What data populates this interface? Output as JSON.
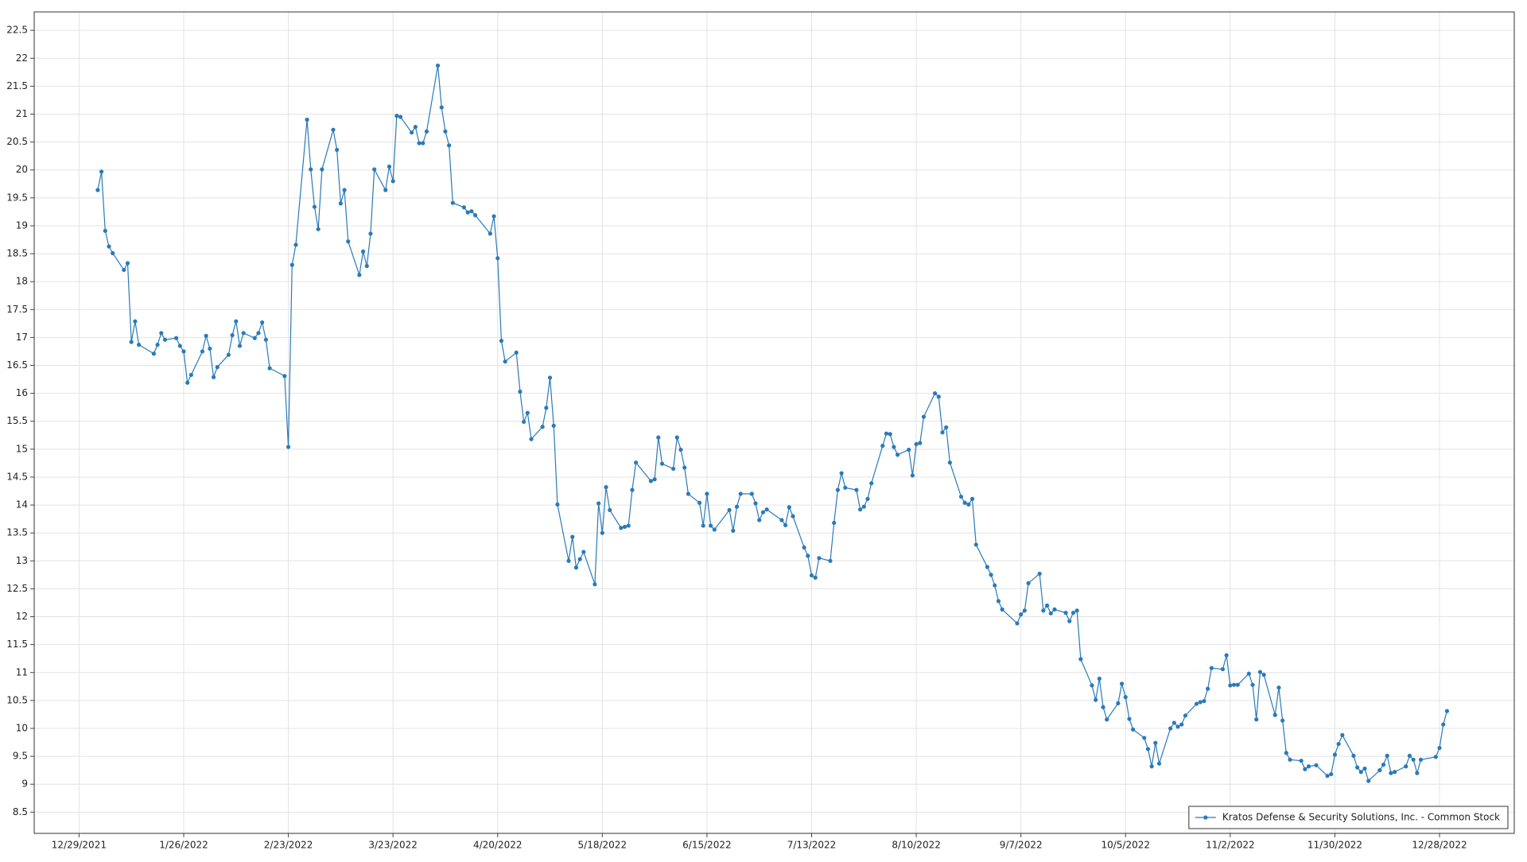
{
  "chart_data": {
    "type": "line",
    "x": [
      "1/3/2022",
      "1/4/2022",
      "1/5/2022",
      "1/6/2022",
      "1/7/2022",
      "1/10/2022",
      "1/11/2022",
      "1/12/2022",
      "1/13/2022",
      "1/14/2022",
      "1/18/2022",
      "1/19/2022",
      "1/20/2022",
      "1/21/2022",
      "1/24/2022",
      "1/25/2022",
      "1/26/2022",
      "1/27/2022",
      "1/28/2022",
      "1/31/2022",
      "2/1/2022",
      "2/2/2022",
      "2/3/2022",
      "2/4/2022",
      "2/7/2022",
      "2/8/2022",
      "2/9/2022",
      "2/10/2022",
      "2/11/2022",
      "2/14/2022",
      "2/15/2022",
      "2/16/2022",
      "2/17/2022",
      "2/18/2022",
      "2/22/2022",
      "2/23/2022",
      "2/24/2022",
      "2/25/2022",
      "2/28/2022",
      "3/1/2022",
      "3/2/2022",
      "3/3/2022",
      "3/4/2022",
      "3/7/2022",
      "3/8/2022",
      "3/9/2022",
      "3/10/2022",
      "3/11/2022",
      "3/14/2022",
      "3/15/2022",
      "3/16/2022",
      "3/17/2022",
      "3/18/2022",
      "3/21/2022",
      "3/22/2022",
      "3/23/2022",
      "3/24/2022",
      "3/25/2022",
      "3/28/2022",
      "3/29/2022",
      "3/30/2022",
      "3/31/2022",
      "4/1/2022",
      "4/4/2022",
      "4/5/2022",
      "4/6/2022",
      "4/7/2022",
      "4/8/2022",
      "4/11/2022",
      "4/12/2022",
      "4/13/2022",
      "4/14/2022",
      "4/18/2022",
      "4/19/2022",
      "4/20/2022",
      "4/21/2022",
      "4/22/2022",
      "4/25/2022",
      "4/26/2022",
      "4/27/2022",
      "4/28/2022",
      "4/29/2022",
      "5/2/2022",
      "5/3/2022",
      "5/4/2022",
      "5/5/2022",
      "5/6/2022",
      "5/9/2022",
      "5/10/2022",
      "5/11/2022",
      "5/12/2022",
      "5/13/2022",
      "5/16/2022",
      "5/17/2022",
      "5/18/2022",
      "5/19/2022",
      "5/20/2022",
      "5/23/2022",
      "5/24/2022",
      "5/25/2022",
      "5/26/2022",
      "5/27/2022",
      "5/31/2022",
      "6/1/2022",
      "6/2/2022",
      "6/3/2022",
      "6/6/2022",
      "6/7/2022",
      "6/8/2022",
      "6/9/2022",
      "6/10/2022",
      "6/13/2022",
      "6/14/2022",
      "6/15/2022",
      "6/16/2022",
      "6/17/2022",
      "6/21/2022",
      "6/22/2022",
      "6/23/2022",
      "6/24/2022",
      "6/27/2022",
      "6/28/2022",
      "6/29/2022",
      "6/30/2022",
      "7/1/2022",
      "7/5/2022",
      "7/6/2022",
      "7/7/2022",
      "7/8/2022",
      "7/11/2022",
      "7/12/2022",
      "7/13/2022",
      "7/14/2022",
      "7/15/2022",
      "7/18/2022",
      "7/19/2022",
      "7/20/2022",
      "7/21/2022",
      "7/22/2022",
      "7/25/2022",
      "7/26/2022",
      "7/27/2022",
      "7/28/2022",
      "7/29/2022",
      "8/1/2022",
      "8/2/2022",
      "8/3/2022",
      "8/4/2022",
      "8/5/2022",
      "8/8/2022",
      "8/9/2022",
      "8/10/2022",
      "8/11/2022",
      "8/12/2022",
      "8/15/2022",
      "8/16/2022",
      "8/17/2022",
      "8/18/2022",
      "8/19/2022",
      "8/22/2022",
      "8/23/2022",
      "8/24/2022",
      "8/25/2022",
      "8/26/2022",
      "8/29/2022",
      "8/30/2022",
      "8/31/2022",
      "9/1/2022",
      "9/2/2022",
      "9/6/2022",
      "9/7/2022",
      "9/8/2022",
      "9/9/2022",
      "9/12/2022",
      "9/13/2022",
      "9/14/2022",
      "9/15/2022",
      "9/16/2022",
      "9/19/2022",
      "9/20/2022",
      "9/21/2022",
      "9/22/2022",
      "9/23/2022",
      "9/26/2022",
      "9/27/2022",
      "9/28/2022",
      "9/29/2022",
      "9/30/2022",
      "10/3/2022",
      "10/4/2022",
      "10/5/2022",
      "10/6/2022",
      "10/7/2022",
      "10/10/2022",
      "10/11/2022",
      "10/12/2022",
      "10/13/2022",
      "10/14/2022",
      "10/17/2022",
      "10/18/2022",
      "10/19/2022",
      "10/20/2022",
      "10/21/2022",
      "10/24/2022",
      "10/25/2022",
      "10/26/2022",
      "10/27/2022",
      "10/28/2022",
      "10/31/2022",
      "11/1/2022",
      "11/2/2022",
      "11/3/2022",
      "11/4/2022",
      "11/7/2022",
      "11/8/2022",
      "11/9/2022",
      "11/10/2022",
      "11/11/2022",
      "11/14/2022",
      "11/15/2022",
      "11/16/2022",
      "11/17/2022",
      "11/18/2022",
      "11/21/2022",
      "11/22/2022",
      "11/23/2022",
      "11/25/2022",
      "11/28/2022",
      "11/29/2022",
      "11/30/2022",
      "12/1/2022",
      "12/2/2022",
      "12/5/2022",
      "12/6/2022",
      "12/7/2022",
      "12/8/2022",
      "12/9/2022",
      "12/12/2022",
      "12/13/2022",
      "12/14/2022",
      "12/15/2022",
      "12/16/2022",
      "12/19/2022",
      "12/20/2022",
      "12/21/2022",
      "12/22/2022",
      "12/23/2022",
      "12/27/2022",
      "12/28/2022",
      "12/29/2022",
      "12/30/2022"
    ],
    "series": [
      {
        "name": "Kratos Defense & Security Solutions, Inc. - Common Stock",
        "color": "#2a7ab9",
        "values": [
          19.64,
          19.97,
          18.91,
          18.63,
          18.51,
          18.21,
          18.33,
          16.92,
          17.29,
          16.87,
          16.71,
          16.87,
          17.08,
          16.96,
          16.99,
          16.85,
          16.75,
          16.19,
          16.33,
          16.75,
          17.03,
          16.8,
          16.29,
          16.47,
          16.69,
          17.04,
          17.29,
          16.85,
          17.08,
          16.99,
          17.08,
          17.27,
          16.96,
          16.45,
          16.31,
          15.04,
          18.3,
          18.66,
          20.9,
          20.01,
          19.34,
          18.94,
          20.01,
          20.72,
          20.36,
          19.4,
          19.64,
          18.72,
          18.12,
          18.54,
          18.28,
          18.86,
          20.01,
          19.64,
          20.06,
          19.8,
          20.97,
          20.95,
          20.67,
          20.77,
          20.48,
          20.48,
          20.69,
          21.87,
          21.12,
          20.69,
          20.44,
          19.41,
          19.33,
          19.24,
          19.26,
          19.19,
          18.86,
          19.17,
          18.42,
          16.94,
          16.57,
          16.73,
          16.03,
          15.49,
          15.65,
          15.18,
          15.4,
          15.74,
          16.28,
          15.42,
          14.01,
          13.0,
          13.43,
          12.88,
          13.03,
          13.16,
          12.58,
          14.03,
          13.5,
          14.32,
          13.91,
          13.59,
          13.61,
          13.63,
          14.27,
          14.76,
          14.43,
          14.46,
          15.21,
          14.74,
          14.65,
          15.21,
          14.99,
          14.67,
          14.2,
          14.04,
          13.63,
          14.2,
          13.63,
          13.56,
          13.91,
          13.54,
          13.97,
          14.2,
          14.2,
          14.03,
          13.73,
          13.87,
          13.92,
          13.73,
          13.64,
          13.96,
          13.8,
          13.24,
          13.09,
          12.74,
          12.7,
          13.05,
          13.0,
          13.68,
          14.27,
          14.57,
          14.31,
          14.27,
          13.92,
          13.97,
          14.11,
          14.39,
          15.06,
          15.28,
          15.27,
          15.04,
          14.9,
          14.99,
          14.53,
          15.09,
          15.11,
          15.58,
          16.0,
          15.94,
          15.3,
          15.39,
          14.76,
          14.15,
          14.04,
          14.01,
          14.11,
          13.29,
          12.89,
          12.75,
          12.56,
          12.28,
          12.13,
          11.88,
          12.04,
          12.11,
          12.6,
          12.77,
          12.11,
          12.2,
          12.06,
          12.13,
          12.07,
          11.92,
          12.07,
          12.11,
          11.24,
          10.77,
          10.51,
          10.89,
          10.38,
          10.16,
          10.45,
          10.8,
          10.56,
          10.17,
          9.98,
          9.83,
          9.63,
          9.32,
          9.74,
          9.37,
          10.0,
          10.1,
          10.03,
          10.07,
          10.23,
          10.44,
          10.47,
          10.49,
          10.71,
          11.08,
          11.06,
          11.31,
          10.77,
          10.78,
          10.78,
          10.98,
          10.78,
          10.16,
          11.01,
          10.96,
          10.24,
          10.73,
          10.14,
          9.56,
          9.44,
          9.42,
          9.27,
          9.32,
          9.34,
          9.15,
          9.18,
          9.53,
          9.72,
          9.88,
          9.51,
          9.3,
          9.22,
          9.28,
          9.06,
          9.25,
          9.35,
          9.51,
          9.2,
          9.22,
          9.32,
          9.51,
          9.44,
          9.2,
          9.44,
          9.49,
          9.65,
          10.07,
          10.31
        ]
      }
    ],
    "xlim": [
      "12/17/2021",
      "1/17/2023"
    ],
    "xticks": [
      "12/29/2021",
      "1/26/2022",
      "2/23/2022",
      "3/23/2022",
      "4/20/2022",
      "5/18/2022",
      "6/15/2022",
      "7/13/2022",
      "8/10/2022",
      "9/7/2022",
      "10/5/2022",
      "11/2/2022",
      "11/30/2022",
      "12/28/2022"
    ],
    "ylim": [
      8.12,
      22.83
    ],
    "yticks": [
      8.5,
      9,
      9.5,
      10,
      10.5,
      11,
      11.5,
      12,
      12.5,
      13,
      13.5,
      14,
      14.5,
      15,
      15.5,
      16,
      16.5,
      17,
      17.5,
      18,
      18.5,
      19,
      19.5,
      20,
      20.5,
      21,
      21.5,
      22,
      22.5
    ],
    "grid": true,
    "legend": "lower right"
  }
}
